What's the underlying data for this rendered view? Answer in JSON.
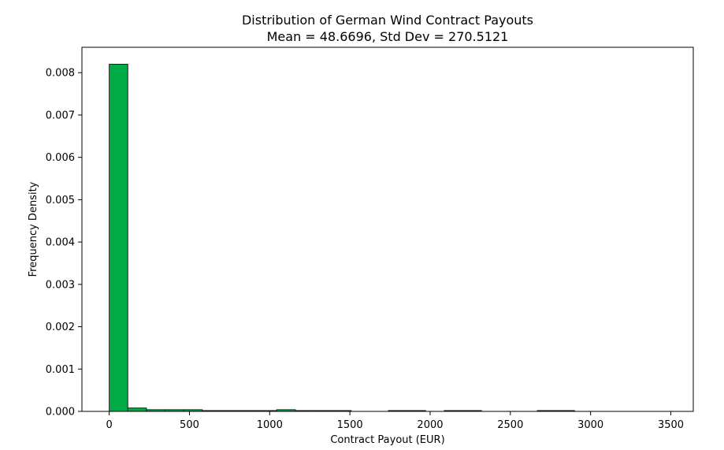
{
  "chart_data": {
    "type": "bar",
    "title": "Distribution of German Wind Contract Payouts",
    "subtitle": "Mean = 48.6696, Std Dev = 270.5121",
    "xlabel": "Contract Payout (EUR)",
    "ylabel": "Frequency Density",
    "xlim": [
      -170,
      3640
    ],
    "ylim": [
      0,
      0.0086
    ],
    "x_ticks": [
      0,
      500,
      1000,
      1500,
      2000,
      2500,
      3000,
      3500
    ],
    "x_tick_labels": [
      "0",
      "500",
      "1000",
      "1500",
      "2000",
      "2500",
      "3000",
      "3500"
    ],
    "y_ticks": [
      0.0,
      0.001,
      0.002,
      0.003,
      0.004,
      0.005,
      0.006,
      0.007,
      0.008
    ],
    "y_tick_labels": [
      "0.000",
      "0.001",
      "0.002",
      "0.003",
      "0.004",
      "0.005",
      "0.006",
      "0.007",
      "0.008"
    ],
    "bar_color": "#00aa44",
    "edge_color": "#222222",
    "grid": false,
    "bins": [
      {
        "start": 0,
        "end": 116,
        "value": 0.0082
      },
      {
        "start": 116,
        "end": 232,
        "value": 8e-05
      },
      {
        "start": 232,
        "end": 348,
        "value": 4e-05
      },
      {
        "start": 348,
        "end": 464,
        "value": 4e-05
      },
      {
        "start": 464,
        "end": 580,
        "value": 4e-05
      },
      {
        "start": 580,
        "end": 696,
        "value": 2e-05
      },
      {
        "start": 696,
        "end": 812,
        "value": 2e-05
      },
      {
        "start": 812,
        "end": 928,
        "value": 2e-05
      },
      {
        "start": 928,
        "end": 1044,
        "value": 2e-05
      },
      {
        "start": 1044,
        "end": 1160,
        "value": 4e-05
      },
      {
        "start": 1160,
        "end": 1276,
        "value": 2e-05
      },
      {
        "start": 1276,
        "end": 1392,
        "value": 2e-05
      },
      {
        "start": 1392,
        "end": 1508,
        "value": 2e-05
      },
      {
        "start": 1508,
        "end": 1624,
        "value": 0
      },
      {
        "start": 1624,
        "end": 1740,
        "value": 0
      },
      {
        "start": 1740,
        "end": 1856,
        "value": 2e-05
      },
      {
        "start": 1856,
        "end": 1972,
        "value": 2e-05
      },
      {
        "start": 1972,
        "end": 2088,
        "value": 0
      },
      {
        "start": 2088,
        "end": 2204,
        "value": 2e-05
      },
      {
        "start": 2204,
        "end": 2320,
        "value": 2e-05
      },
      {
        "start": 2320,
        "end": 2436,
        "value": 0
      },
      {
        "start": 2436,
        "end": 2552,
        "value": 0
      },
      {
        "start": 2552,
        "end": 2668,
        "value": 0
      },
      {
        "start": 2668,
        "end": 2784,
        "value": 2e-05
      },
      {
        "start": 2784,
        "end": 2900,
        "value": 2e-05
      },
      {
        "start": 2900,
        "end": 3016,
        "value": 0
      },
      {
        "start": 3016,
        "end": 3132,
        "value": 0
      },
      {
        "start": 3132,
        "end": 3248,
        "value": 0
      },
      {
        "start": 3248,
        "end": 3364,
        "value": 0
      },
      {
        "start": 3364,
        "end": 3480,
        "value": 0
      }
    ]
  }
}
